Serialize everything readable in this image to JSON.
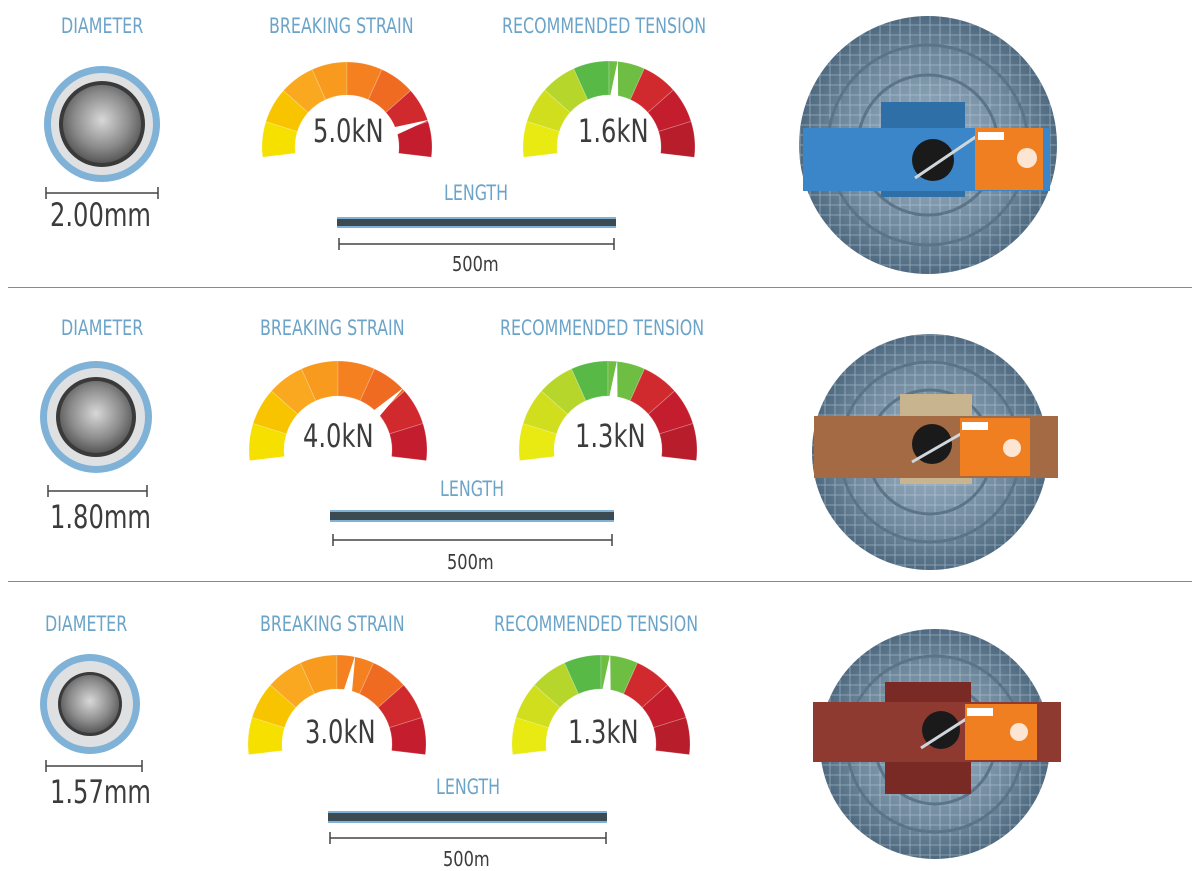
{
  "labels": {
    "diameter": "DIAMETER",
    "breaking_strain": "BREAKING STRAIN",
    "recommended_tension": "RECOMMENDED TENSION",
    "length": "LENGTH"
  },
  "products": [
    {
      "diameter": "2.00mm",
      "breaking_strain": "5.0kN",
      "breaking_strain_kn": 5.0,
      "recommended_tension": "1.6kN",
      "recommended_tension_kn": 1.6,
      "length": "500m",
      "spool_color": "#3a86c8"
    },
    {
      "diameter": "1.80mm",
      "breaking_strain": "4.0kN",
      "breaking_strain_kn": 4.0,
      "recommended_tension": "1.3kN",
      "recommended_tension_kn": 1.3,
      "length": "500m",
      "spool_color": "#a46a44"
    },
    {
      "diameter": "1.57mm",
      "breaking_strain": "3.0kN",
      "breaking_strain_kn": 3.0,
      "recommended_tension": "1.3kN",
      "recommended_tension_kn": 1.3,
      "length": "500m",
      "spool_color": "#8e3a30"
    }
  ],
  "gauge_colors": {
    "strain": [
      "#f6e000",
      "#f8c400",
      "#f9a820",
      "#f79a1e",
      "#f48020",
      "#f06b22",
      "#d02a2e",
      "#c41e2e"
    ],
    "tension": [
      "#e8ea12",
      "#d0de1e",
      "#b6d62c",
      "#58b947",
      "#6ebe44",
      "#d02a2e",
      "#c41e2e",
      "#b81d2c"
    ]
  },
  "wire_colors": {
    "outer_ring": "#7fb2d6",
    "core": "#8a8a8a",
    "tag": "#f07f22"
  }
}
